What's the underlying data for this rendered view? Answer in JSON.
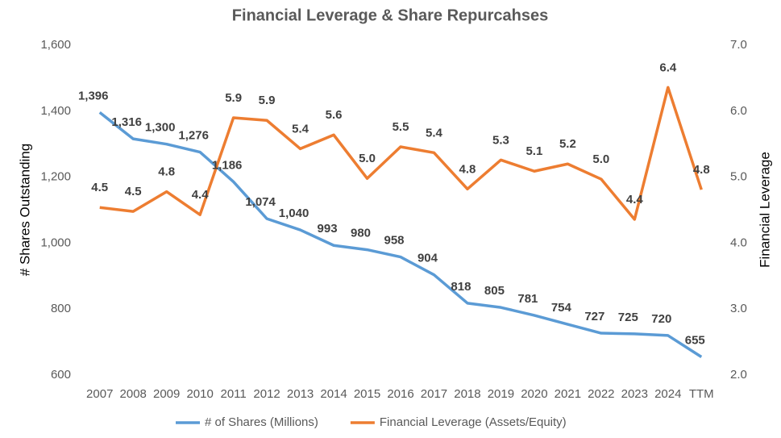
{
  "chart_data": {
    "type": "line",
    "title": "Financial Leverage & Share Repurcahses",
    "ylabel": "# Shares Outstanding",
    "y2label": "Financial Leverage",
    "categories": [
      "2007",
      "2008",
      "2009",
      "2010",
      "2011",
      "2012",
      "2013",
      "2014",
      "2015",
      "2016",
      "2017",
      "2018",
      "2019",
      "2020",
      "2021",
      "2022",
      "2023",
      "2024",
      "TTM"
    ],
    "ylim": [
      600,
      1600
    ],
    "yticks": [
      {
        "value": 600,
        "label": "600"
      },
      {
        "value": 800,
        "label": "800"
      },
      {
        "value": 1000,
        "label": "1,000"
      },
      {
        "value": 1200,
        "label": "1,200"
      },
      {
        "value": 1400,
        "label": "1,400"
      },
      {
        "value": 1600,
        "label": "1,600"
      }
    ],
    "y2lim": [
      2,
      7
    ],
    "y2ticks": [
      {
        "value": 2,
        "label": "2.0"
      },
      {
        "value": 3,
        "label": "3.0"
      },
      {
        "value": 4,
        "label": "4.0"
      },
      {
        "value": 5,
        "label": "5.0"
      },
      {
        "value": 6,
        "label": "6.0"
      },
      {
        "value": 7,
        "label": "7.0"
      }
    ],
    "legend": "bottom",
    "series": [
      {
        "name": "# of Shares (Millions)",
        "color": "#5b9bd5",
        "values": [
          1396,
          1316,
          1300,
          1276,
          1186,
          1074,
          1040,
          993,
          980,
          958,
          904,
          818,
          805,
          781,
          754,
          727,
          725,
          720,
          655
        ],
        "value_labels": [
          "1,396",
          "1,316",
          "1,300",
          "1,276",
          "1,186",
          "1,074",
          "1,040",
          "993",
          "980",
          "958",
          "904",
          "818",
          "805",
          "781",
          "754",
          "727",
          "725",
          "720",
          "655"
        ]
      },
      {
        "name": "Financial Leverage (Assets/Equity)",
        "color": "#ed7d31",
        "axis": "y2",
        "values": [
          4.54,
          4.48,
          4.78,
          4.43,
          5.9,
          5.86,
          5.43,
          5.64,
          4.98,
          5.46,
          5.37,
          4.82,
          5.26,
          5.09,
          5.2,
          4.97,
          4.36,
          6.36,
          4.81
        ],
        "value_labels": [
          "4.5",
          "4.5",
          "4.8",
          "4.4",
          "5.9",
          "5.9",
          "5.4",
          "5.6",
          "5.0",
          "5.5",
          "5.4",
          "4.8",
          "5.3",
          "5.1",
          "5.2",
          "5.0",
          "4.4",
          "6.4",
          "4.8"
        ]
      }
    ]
  }
}
